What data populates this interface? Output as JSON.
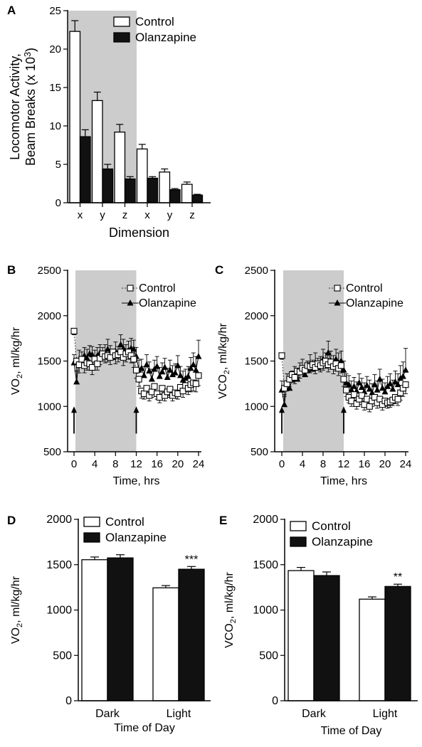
{
  "chart_data": [
    {
      "panel": "A",
      "type": "bar",
      "title": "",
      "xlabel": "Dimension",
      "ylabel": [
        "Locomotor Activity,",
        "Beam Breaks (x 10³)"
      ],
      "ylim": [
        0,
        25
      ],
      "yticks": [
        "0",
        "5",
        "10",
        "15",
        "20",
        "25"
      ],
      "categories": [
        "x",
        "y",
        "z",
        "x",
        "y",
        "z"
      ],
      "shaded_categories": [
        0,
        1,
        2
      ],
      "legend": "top-right",
      "series": [
        {
          "name": "Control",
          "fill": "#ffffff",
          "values": [
            22.3,
            13.3,
            9.2,
            7.0,
            4.0,
            2.4
          ],
          "errors": [
            1.4,
            1.1,
            1.0,
            0.6,
            0.4,
            0.3
          ]
        },
        {
          "name": "Olanzapine",
          "fill": "#111111",
          "values": [
            8.6,
            4.4,
            3.1,
            3.2,
            1.7,
            1.0
          ],
          "errors": [
            0.9,
            0.6,
            0.3,
            0.2,
            0.15,
            0.1
          ]
        }
      ]
    },
    {
      "panel": "B",
      "type": "line",
      "title": "",
      "xlabel": "Time, hrs",
      "ylabel": "VO₂, ml/kg/hr",
      "xlim": [
        0,
        24
      ],
      "ylim": [
        500,
        2500
      ],
      "xticks": [
        "0",
        "4",
        "8",
        "12",
        "16",
        "20",
        "24"
      ],
      "yticks": [
        "500",
        "1000",
        "1500",
        "2000",
        "2500"
      ],
      "shaded_range": [
        0,
        12
      ],
      "arrows_at": [
        0,
        12
      ],
      "legend": "top-right",
      "x": [
        0,
        0.5,
        1,
        1.5,
        2,
        2.5,
        3,
        3.5,
        4,
        4.5,
        5,
        5.5,
        6,
        6.5,
        7,
        7.5,
        8,
        8.5,
        9,
        9.5,
        10,
        10.5,
        11,
        11.5,
        12,
        12.5,
        13,
        13.5,
        14,
        14.5,
        15,
        15.5,
        16,
        16.5,
        17,
        17.5,
        18,
        18.5,
        19,
        19.5,
        20,
        20.5,
        21,
        21.5,
        22,
        22.5,
        23,
        23.5,
        24
      ],
      "series": [
        {
          "name": "Control",
          "marker": "square-open",
          "values": [
            1830,
            1500,
            1460,
            1520,
            1450,
            1480,
            1470,
            1430,
            1520,
            1470,
            1530,
            1580,
            1550,
            1560,
            1540,
            1600,
            1560,
            1570,
            1600,
            1540,
            1580,
            1600,
            1560,
            1520,
            1400,
            1300,
            1170,
            1140,
            1200,
            1120,
            1160,
            1220,
            1140,
            1100,
            1200,
            1120,
            1160,
            1190,
            1120,
            1150,
            1140,
            1210,
            1170,
            1230,
            1200,
            1240,
            1260,
            1250,
            1340
          ],
          "errors": [
            40,
            110,
            90,
            90,
            80,
            80,
            70,
            80,
            80,
            70,
            70,
            80,
            70,
            70,
            80,
            70,
            90,
            80,
            80,
            90,
            90,
            80,
            80,
            90,
            90,
            80,
            80,
            60,
            60,
            60,
            60,
            60,
            60,
            60,
            70,
            60,
            60,
            70,
            60,
            60,
            60,
            70,
            70,
            70,
            70,
            80,
            90,
            90,
            110
          ]
        },
        {
          "name": "Olanzapine",
          "marker": "triangle-filled",
          "values": [
            1480,
            1270,
            1520,
            1490,
            1560,
            1530,
            1580,
            1570,
            1520,
            1560,
            1590,
            1550,
            1580,
            1630,
            1570,
            1540,
            1610,
            1560,
            1680,
            1640,
            1580,
            1620,
            1640,
            1630,
            1550,
            1400,
            1420,
            1340,
            1460,
            1390,
            1300,
            1410,
            1440,
            1330,
            1380,
            1430,
            1320,
            1400,
            1350,
            1370,
            1450,
            1340,
            1290,
            1310,
            1330,
            1420,
            1460,
            1400,
            1550
          ],
          "errors": [
            90,
            120,
            100,
            110,
            90,
            100,
            90,
            90,
            100,
            90,
            90,
            100,
            100,
            110,
            100,
            90,
            100,
            100,
            110,
            100,
            100,
            100,
            110,
            100,
            100,
            110,
            100,
            100,
            110,
            100,
            110,
            100,
            110,
            100,
            100,
            100,
            100,
            110,
            100,
            100,
            110,
            100,
            100,
            100,
            110,
            120,
            130,
            150,
            180
          ]
        }
      ]
    },
    {
      "panel": "C",
      "type": "line",
      "title": "",
      "xlabel": "Time, hrs",
      "ylabel": "VCO₂, ml/kg/hr",
      "xlim": [
        0,
        24
      ],
      "ylim": [
        500,
        2500
      ],
      "xticks": [
        "0",
        "4",
        "8",
        "12",
        "16",
        "20",
        "24"
      ],
      "yticks": [
        "500",
        "1000",
        "1500",
        "2000",
        "2500"
      ],
      "shaded_range": [
        0,
        12
      ],
      "arrows_at": [
        0,
        12
      ],
      "legend": "top-right",
      "x": [
        0,
        0.5,
        1,
        1.5,
        2,
        2.5,
        3,
        3.5,
        4,
        4.5,
        5,
        5.5,
        6,
        6.5,
        7,
        7.5,
        8,
        8.5,
        9,
        9.5,
        10,
        10.5,
        11,
        11.5,
        12,
        12.5,
        13,
        13.5,
        14,
        14.5,
        15,
        15.5,
        16,
        16.5,
        17,
        17.5,
        18,
        18.5,
        19,
        19.5,
        20,
        20.5,
        21,
        21.5,
        22,
        22.5,
        23,
        23.5,
        24
      ],
      "series": [
        {
          "name": "Control",
          "marker": "square-open",
          "values": [
            1560,
            1200,
            1250,
            1300,
            1350,
            1320,
            1390,
            1380,
            1420,
            1400,
            1450,
            1440,
            1460,
            1430,
            1470,
            1450,
            1480,
            1500,
            1460,
            1490,
            1440,
            1470,
            1420,
            1450,
            1300,
            1180,
            1100,
            1060,
            1130,
            1030,
            1080,
            1120,
            1020,
            1080,
            1000,
            1060,
            1100,
            1040,
            1080,
            1020,
            1060,
            1040,
            1050,
            1070,
            1100,
            1080,
            1150,
            1200,
            1240
          ],
          "errors": [
            40,
            90,
            80,
            80,
            70,
            70,
            70,
            70,
            70,
            70,
            70,
            70,
            70,
            70,
            70,
            70,
            80,
            80,
            80,
            80,
            80,
            80,
            80,
            80,
            80,
            70,
            60,
            60,
            60,
            60,
            60,
            60,
            60,
            60,
            60,
            60,
            60,
            60,
            60,
            60,
            60,
            60,
            60,
            60,
            70,
            70,
            80,
            90,
            100
          ]
        },
        {
          "name": "Olanzapine",
          "marker": "triangle-filled",
          "values": [
            1180,
            1020,
            1260,
            1200,
            1290,
            1340,
            1300,
            1380,
            1420,
            1350,
            1400,
            1460,
            1410,
            1480,
            1430,
            1450,
            1520,
            1480,
            1590,
            1500,
            1460,
            1520,
            1480,
            1500,
            1400,
            1260,
            1240,
            1180,
            1220,
            1170,
            1260,
            1210,
            1160,
            1230,
            1190,
            1150,
            1240,
            1180,
            1300,
            1200,
            1160,
            1220,
            1250,
            1190,
            1270,
            1240,
            1310,
            1330,
            1400
          ],
          "errors": [
            100,
            110,
            100,
            100,
            100,
            100,
            100,
            100,
            100,
            100,
            100,
            110,
            100,
            110,
            100,
            100,
            110,
            110,
            130,
            110,
            100,
            110,
            110,
            110,
            100,
            100,
            100,
            100,
            100,
            100,
            100,
            100,
            100,
            100,
            100,
            100,
            110,
            100,
            110,
            100,
            100,
            110,
            110,
            100,
            120,
            120,
            140,
            160,
            240
          ]
        }
      ]
    },
    {
      "panel": "D",
      "type": "bar",
      "title": "",
      "xlabel": "Time of Day",
      "ylabel": "VO₂, ml/kg/hr",
      "ylim": [
        0,
        2000
      ],
      "yticks": [
        "0",
        "500",
        "1000",
        "1500",
        "2000"
      ],
      "categories": [
        "Dark",
        "Light"
      ],
      "legend": "top-left",
      "annotations": [
        {
          "category": 1,
          "series": 1,
          "text": "***"
        }
      ],
      "series": [
        {
          "name": "Control",
          "fill": "#ffffff",
          "values": [
            1555,
            1245
          ],
          "errors": [
            30,
            25
          ]
        },
        {
          "name": "Olanzapine",
          "fill": "#111111",
          "values": [
            1575,
            1450
          ],
          "errors": [
            35,
            30
          ]
        }
      ]
    },
    {
      "panel": "E",
      "type": "bar",
      "title": "",
      "xlabel": "Time of Day",
      "ylabel": "VCO₂, ml/kg/hr",
      "ylim": [
        0,
        2000
      ],
      "yticks": [
        "0",
        "500",
        "1000",
        "1500",
        "2000"
      ],
      "categories": [
        "Dark",
        "Light"
      ],
      "legend": "top-left",
      "annotations": [
        {
          "category": 1,
          "series": 1,
          "text": "**"
        }
      ],
      "series": [
        {
          "name": "Control",
          "fill": "#ffffff",
          "values": [
            1435,
            1120
          ],
          "errors": [
            35,
            25
          ]
        },
        {
          "name": "Olanzapine",
          "fill": "#111111",
          "values": [
            1380,
            1260
          ],
          "errors": [
            40,
            25
          ]
        }
      ]
    }
  ],
  "colors": {
    "shade": "#cccccc",
    "bar_dark": "#111111",
    "bar_light": "#ffffff",
    "stroke": "#000000"
  }
}
